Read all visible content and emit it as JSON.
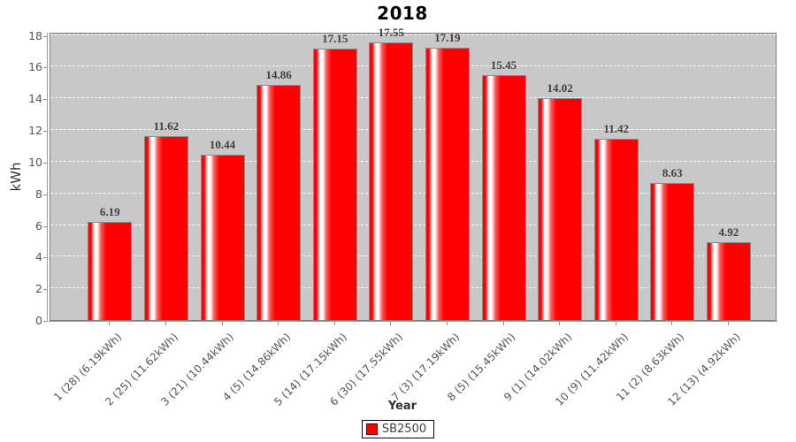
{
  "title": "2018",
  "y_axis": {
    "label": "kWh",
    "ticks": [
      0,
      2,
      4,
      6,
      8,
      10,
      12,
      14,
      16,
      18
    ]
  },
  "x_axis": {
    "label": "Year"
  },
  "legend": {
    "label": "SB2500",
    "swatch_color": "#ff0000"
  },
  "colors": {
    "bar": "#ff0000",
    "bar_outline": "#8a8a8a",
    "plot_background": "#c8c8c8",
    "gridline": "#ffffff",
    "value_label": "#3f3f3f",
    "tick_label": "#555555",
    "title": "#000000"
  },
  "chart_data": {
    "type": "bar",
    "title": "2018",
    "xlabel": "Year",
    "ylabel": "kWh",
    "ylim": [
      0,
      18.2
    ],
    "yticks": [
      0,
      2,
      4,
      6,
      8,
      10,
      12,
      14,
      16,
      18
    ],
    "grid": "horizontal-white-dashed",
    "legend_position": "bottom",
    "plot_background": "#c8c8c8",
    "bar_color": "#ff0000",
    "categories": [
      "1 (28) (6.19kWh)",
      "2 (25) (11.62kWh)",
      "3 (21) (10.44kWh)",
      "4 (5) (14.86kWh)",
      "5 (14) (17.15kWh)",
      "6 (30) (17.55kWh)",
      "7 (3) (17.19kWh)",
      "8 (5) (15.45kWh)",
      "9 (1) (14.02kWh)",
      "10 (9) (11.42kWh)",
      "11 (2) (8.63kWh)",
      "12 (13) (4.92kWh)"
    ],
    "series": [
      {
        "name": "SB2500",
        "values": [
          6.19,
          11.62,
          10.44,
          14.86,
          17.15,
          17.55,
          17.19,
          15.45,
          14.02,
          11.42,
          8.63,
          4.92
        ]
      }
    ],
    "value_labels": [
      "6.19",
      "11.62",
      "10.44",
      "14.86",
      "17.15",
      "17.55",
      "17.19",
      "15.45",
      "14.02",
      "11.42",
      "8.63",
      "4.92"
    ]
  }
}
